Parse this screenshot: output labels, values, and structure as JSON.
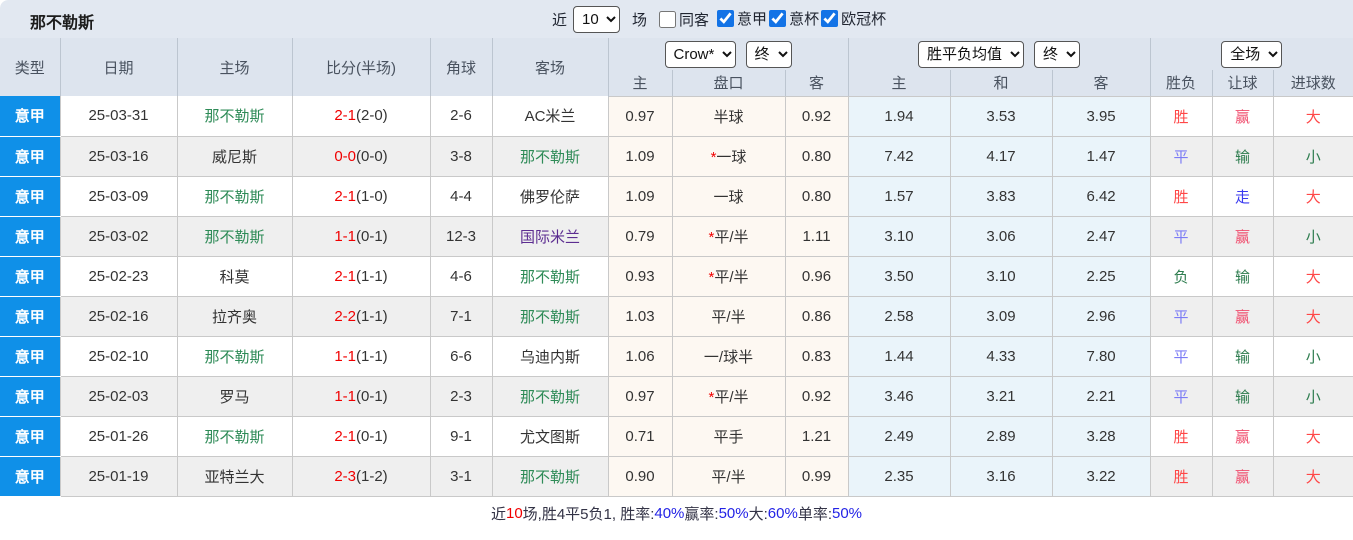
{
  "header": {
    "title": "那不勒斯",
    "near_label": "近",
    "matches_count": "10",
    "matches_label": "场",
    "same_venue": {
      "label": "同客",
      "checked": false
    },
    "filters": [
      {
        "label": "意甲",
        "checked": true
      },
      {
        "label": "意杯",
        "checked": true
      },
      {
        "label": "欧冠杯",
        "checked": true
      }
    ]
  },
  "table": {
    "cols": [
      "类型",
      "日期",
      "主场",
      "比分(半场)",
      "角球",
      "客场"
    ],
    "odds_group": {
      "company": "Crow*",
      "state": "终",
      "subcols": [
        "主",
        "盘口",
        "客"
      ]
    },
    "avg_group": {
      "select": "胜平负均值",
      "state": "终",
      "subcols": [
        "主",
        "和",
        "客"
      ]
    },
    "result_group": {
      "select": "全场",
      "subcols": [
        "胜负",
        "让球",
        "进球数"
      ]
    }
  },
  "rows": [
    {
      "type": "意甲",
      "date": "25-03-31",
      "home": "那不勒斯",
      "home_c": "green",
      "score": "2-1",
      "half": "(2-0)",
      "corner": "2-6",
      "away": "AC米兰",
      "away_c": "",
      "o1": "0.97",
      "star": false,
      "pan": "半球",
      "o2": "0.92",
      "a1": "1.94",
      "a2": "3.53",
      "a3": "3.95",
      "r1": "胜",
      "r1c": "win",
      "r2": "赢",
      "r2c": "rose",
      "r3": "大",
      "r3c": "win"
    },
    {
      "type": "意甲",
      "date": "25-03-16",
      "home": "威尼斯",
      "home_c": "",
      "score": "0-0",
      "half": "(0-0)",
      "corner": "3-8",
      "away": "那不勒斯",
      "away_c": "green",
      "o1": "1.09",
      "star": true,
      "pan": "一球",
      "o2": "0.80",
      "a1": "7.42",
      "a2": "4.17",
      "a3": "1.47",
      "r1": "平",
      "r1c": "draw",
      "r2": "输",
      "r2c": "lose",
      "r3": "小",
      "r3c": "lose"
    },
    {
      "type": "意甲",
      "date": "25-03-09",
      "home": "那不勒斯",
      "home_c": "green",
      "score": "2-1",
      "half": "(1-0)",
      "corner": "4-4",
      "away": "佛罗伦萨",
      "away_c": "",
      "o1": "1.09",
      "star": false,
      "pan": "一球",
      "o2": "0.80",
      "a1": "1.57",
      "a2": "3.83",
      "a3": "6.42",
      "r1": "胜",
      "r1c": "win",
      "r2": "走",
      "r2c": "walk",
      "r3": "大",
      "r3c": "win"
    },
    {
      "type": "意甲",
      "date": "25-03-02",
      "home": "那不勒斯",
      "home_c": "green",
      "score": "1-1",
      "half": "(0-1)",
      "corner": "12-3",
      "away": "国际米兰",
      "away_c": "purple",
      "o1": "0.79",
      "star": true,
      "pan": "平/半",
      "o2": "1.11",
      "a1": "3.10",
      "a2": "3.06",
      "a3": "2.47",
      "r1": "平",
      "r1c": "draw",
      "r2": "赢",
      "r2c": "rose",
      "r3": "小",
      "r3c": "lose"
    },
    {
      "type": "意甲",
      "date": "25-02-23",
      "home": "科莫",
      "home_c": "",
      "score": "2-1",
      "half": "(1-1)",
      "corner": "4-6",
      "away": "那不勒斯",
      "away_c": "green",
      "o1": "0.93",
      "star": true,
      "pan": "平/半",
      "o2": "0.96",
      "a1": "3.50",
      "a2": "3.10",
      "a3": "2.25",
      "r1": "负",
      "r1c": "lose",
      "r2": "输",
      "r2c": "lose",
      "r3": "大",
      "r3c": "win"
    },
    {
      "type": "意甲",
      "date": "25-02-16",
      "home": "拉齐奥",
      "home_c": "",
      "score": "2-2",
      "half": "(1-1)",
      "corner": "7-1",
      "away": "那不勒斯",
      "away_c": "green",
      "o1": "1.03",
      "star": false,
      "pan": "平/半",
      "o2": "0.86",
      "a1": "2.58",
      "a2": "3.09",
      "a3": "2.96",
      "r1": "平",
      "r1c": "draw",
      "r2": "赢",
      "r2c": "rose",
      "r3": "大",
      "r3c": "win"
    },
    {
      "type": "意甲",
      "date": "25-02-10",
      "home": "那不勒斯",
      "home_c": "green",
      "score": "1-1",
      "half": "(1-1)",
      "corner": "6-6",
      "away": "乌迪内斯",
      "away_c": "",
      "o1": "1.06",
      "star": false,
      "pan": "一/球半",
      "o2": "0.83",
      "a1": "1.44",
      "a2": "4.33",
      "a3": "7.80",
      "r1": "平",
      "r1c": "draw",
      "r2": "输",
      "r2c": "lose",
      "r3": "小",
      "r3c": "lose"
    },
    {
      "type": "意甲",
      "date": "25-02-03",
      "home": "罗马",
      "home_c": "",
      "score": "1-1",
      "half": "(0-1)",
      "corner": "2-3",
      "away": "那不勒斯",
      "away_c": "green",
      "o1": "0.97",
      "star": true,
      "pan": "平/半",
      "o2": "0.92",
      "a1": "3.46",
      "a2": "3.21",
      "a3": "2.21",
      "r1": "平",
      "r1c": "draw",
      "r2": "输",
      "r2c": "lose",
      "r3": "小",
      "r3c": "lose"
    },
    {
      "type": "意甲",
      "date": "25-01-26",
      "home": "那不勒斯",
      "home_c": "green",
      "score": "2-1",
      "half": "(0-1)",
      "corner": "9-1",
      "away": "尤文图斯",
      "away_c": "",
      "o1": "0.71",
      "star": false,
      "pan": "平手",
      "o2": "1.21",
      "a1": "2.49",
      "a2": "2.89",
      "a3": "3.28",
      "r1": "胜",
      "r1c": "win",
      "r2": "赢",
      "r2c": "rose",
      "r3": "大",
      "r3c": "win"
    },
    {
      "type": "意甲",
      "date": "25-01-19",
      "home": "亚特兰大",
      "home_c": "",
      "score": "2-3",
      "half": "(1-2)",
      "corner": "3-1",
      "away": "那不勒斯",
      "away_c": "green",
      "o1": "0.90",
      "star": false,
      "pan": "平/半",
      "o2": "0.99",
      "a1": "2.35",
      "a2": "3.16",
      "a3": "3.22",
      "r1": "胜",
      "r1c": "win",
      "r2": "赢",
      "r2c": "rose",
      "r3": "大",
      "r3c": "win"
    }
  ],
  "footer": {
    "parts": [
      {
        "t": "近",
        "c": "plain"
      },
      {
        "t": "10",
        "c": "red"
      },
      {
        "t": "场,胜4平5负1, 胜率:",
        "c": "plain"
      },
      {
        "t": "40%",
        "c": "blue"
      },
      {
        "t": " 赢率:",
        "c": "plain"
      },
      {
        "t": "50%",
        "c": "blue"
      },
      {
        "t": " 大:",
        "c": "plain"
      },
      {
        "t": "60%",
        "c": "blue"
      },
      {
        "t": " 单率:",
        "c": "plain"
      },
      {
        "t": "50%",
        "c": "blue"
      }
    ]
  },
  "colors": {
    "accent_blue": "#0f90e8",
    "score_red": "#f10000",
    "team_green": "#2e8b57",
    "team_purple": "#5c2d91",
    "win_red": "#ff4747",
    "draw_blue": "#7b7bf5",
    "lose_green": "#2e7d4f",
    "handicap_win_rose": "#f04e6e",
    "push_blue": "#3a3af0",
    "percent_blue": "#2323e6",
    "odds_bg_cream": "#fdf8f2",
    "avg_bg_blue": "#eaf4fa",
    "header_bg": "#dde4ee"
  }
}
